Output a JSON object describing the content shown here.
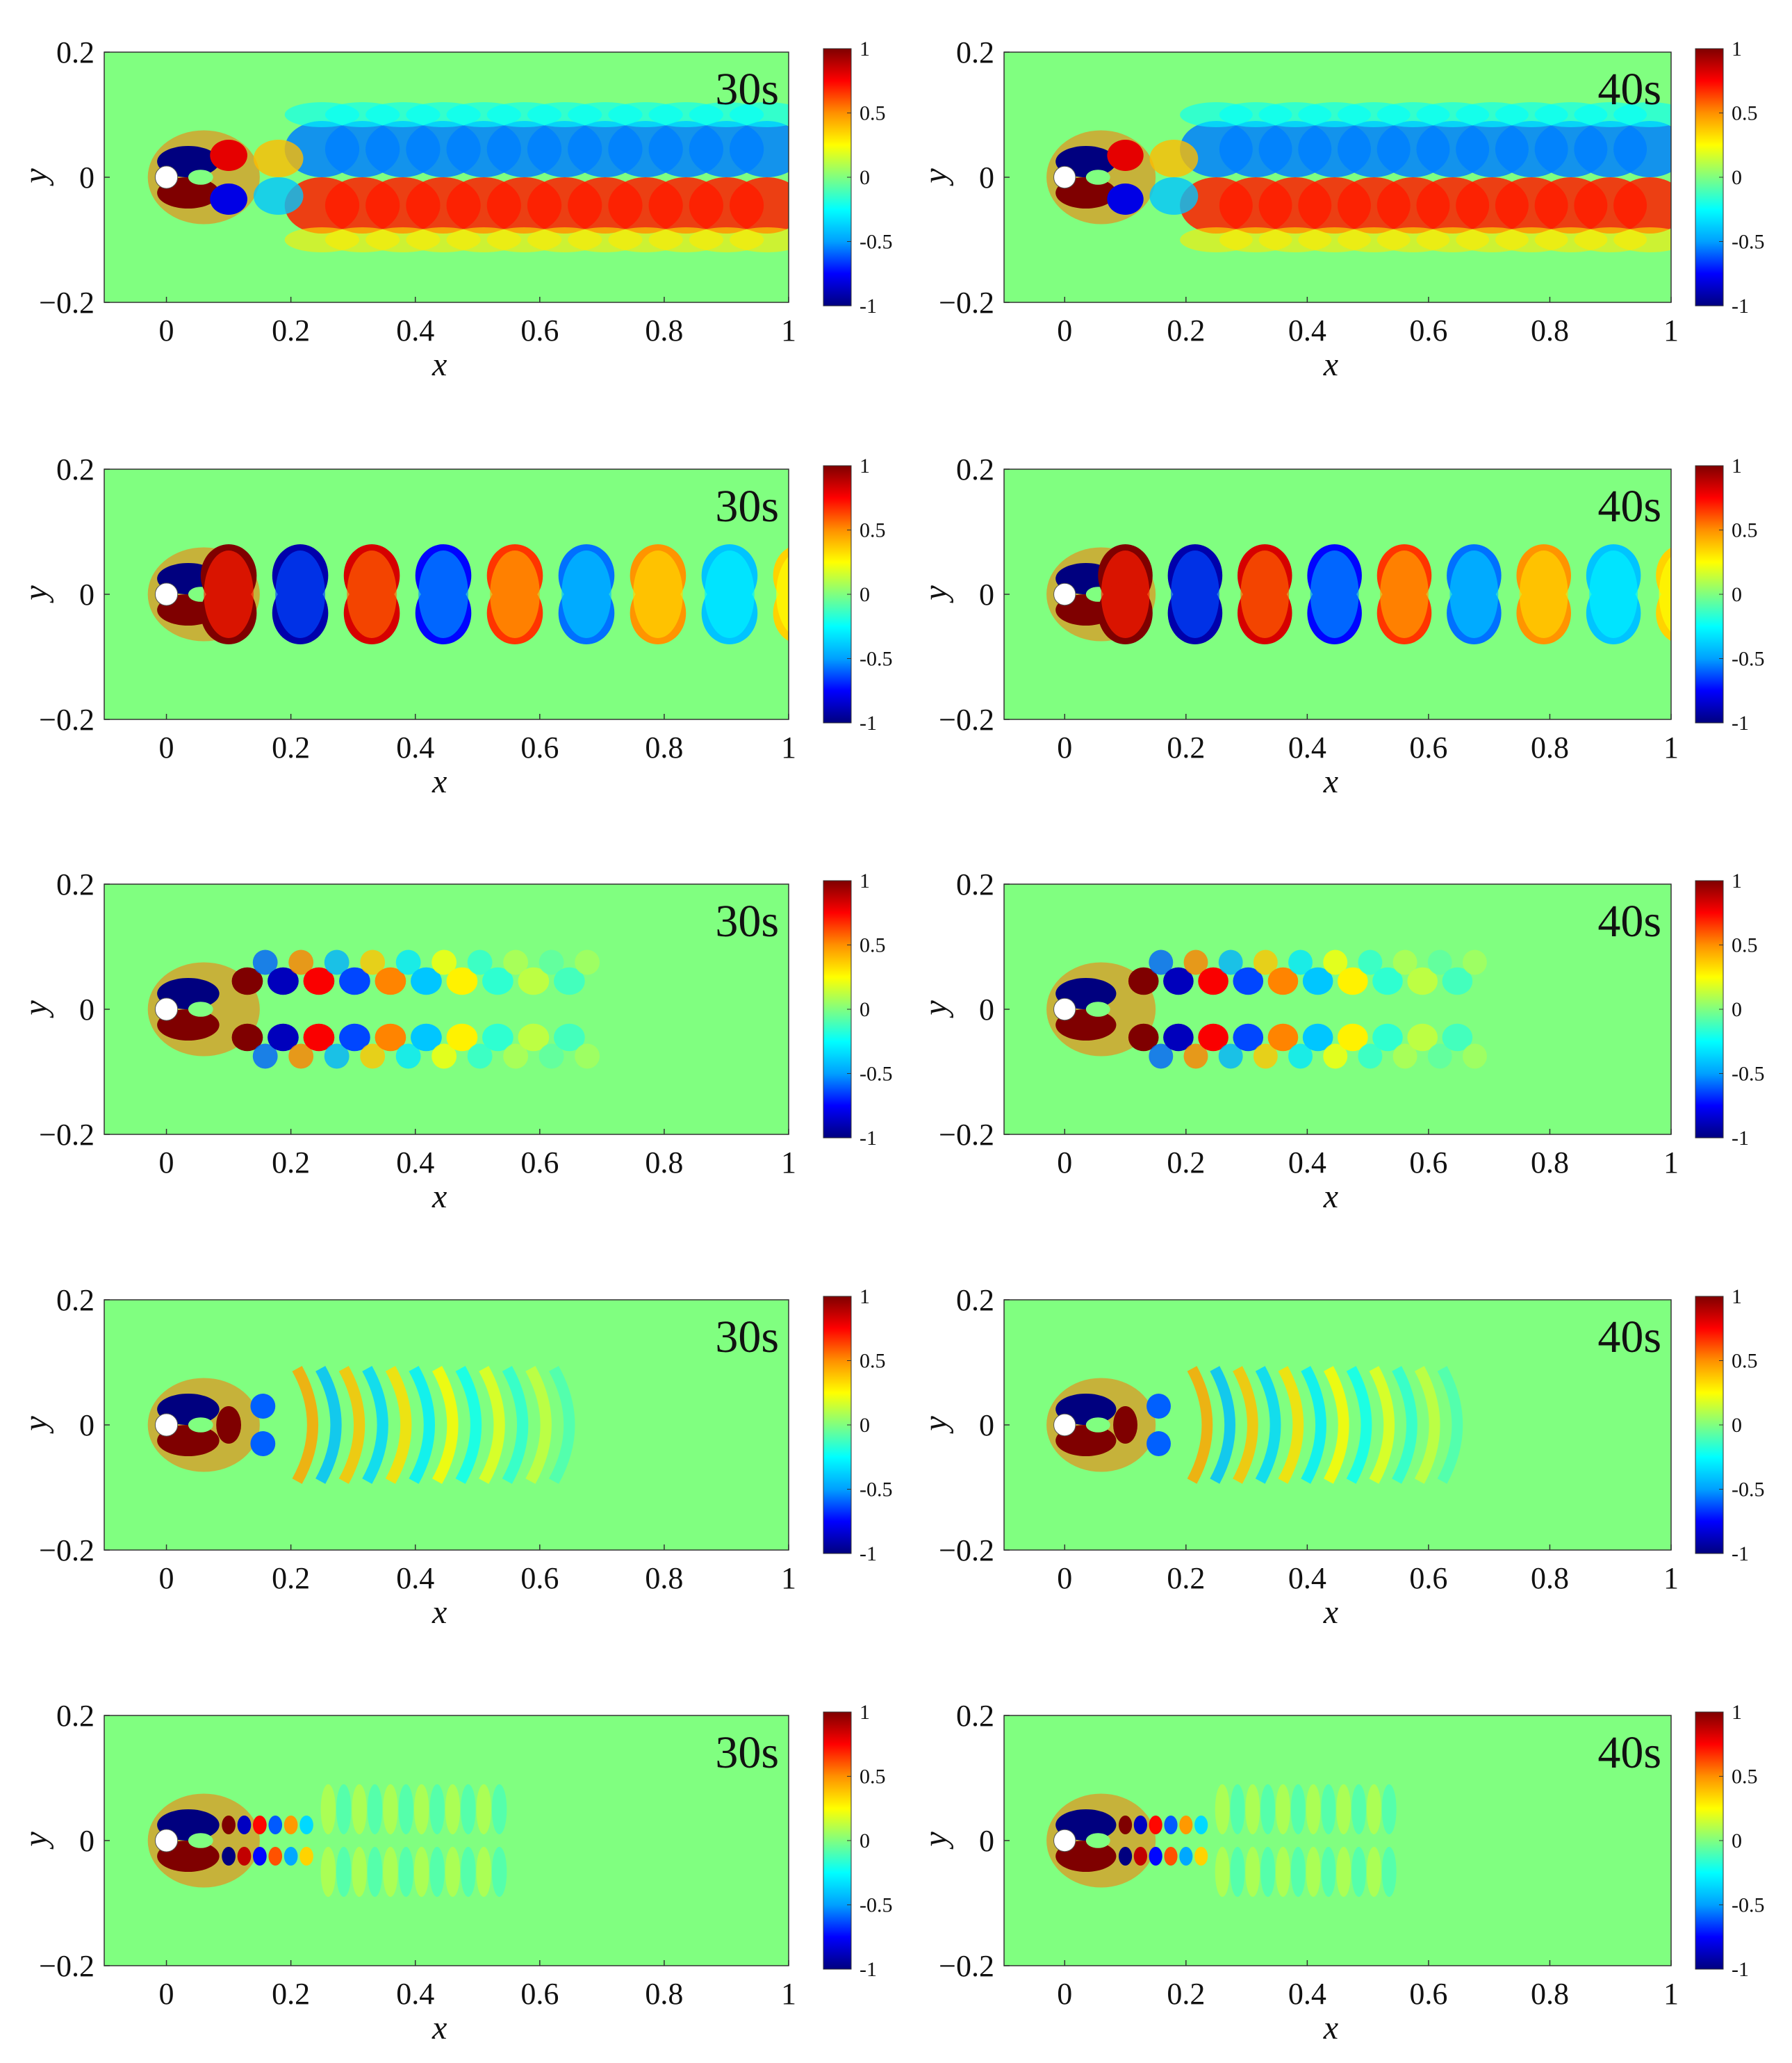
{
  "chart_data": {
    "type": "heatmap",
    "panel_layout": {
      "rows": 5,
      "columns": 2
    },
    "xlabel": "x",
    "ylabel": "y",
    "xlim": [
      -0.1,
      1
    ],
    "ylim": [
      -0.2,
      0.2
    ],
    "xticks": [
      "0",
      "0.2",
      "0.4",
      "0.6",
      "0.8",
      "1"
    ],
    "yticks": [
      "0.2",
      "0",
      "−0.2"
    ],
    "colorbar": {
      "range": [
        -1,
        1
      ],
      "ticks": [
        "1",
        "0.5",
        "0",
        "-0.5",
        "-1"
      ],
      "colormap": "jet"
    },
    "colormap_stops": [
      "#00007f",
      "#0000ff",
      "#00a0ff",
      "#00ffff",
      "#80ff80",
      "#ffff00",
      "#ff9000",
      "#ff0000",
      "#7f0000"
    ],
    "background_value": 0,
    "panels": [
      {
        "row": 1,
        "time_label": "30s",
        "pattern": "shear-layer wake",
        "wavelength": 0
      },
      {
        "row": 1,
        "time_label": "40s",
        "pattern": "shear-layer wake",
        "wavelength": 0
      },
      {
        "row": 2,
        "time_label": "30s",
        "pattern": "vortex street",
        "wavelength": 0.23
      },
      {
        "row": 2,
        "time_label": "40s",
        "pattern": "vortex street",
        "wavelength": 0.23
      },
      {
        "row": 3,
        "time_label": "30s",
        "pattern": "decaying wake",
        "wavelength": 0.115
      },
      {
        "row": 3,
        "time_label": "40s",
        "pattern": "decaying wake",
        "wavelength": 0.115
      },
      {
        "row": 4,
        "time_label": "30s",
        "pattern": "arc waves",
        "wavelength": 0.075
      },
      {
        "row": 4,
        "time_label": "40s",
        "pattern": "arc waves",
        "wavelength": 0.075
      },
      {
        "row": 5,
        "time_label": "30s",
        "pattern": "compact wake",
        "wavelength": 0.05
      },
      {
        "row": 5,
        "time_label": "40s",
        "pattern": "compact wake",
        "wavelength": 0.05
      }
    ]
  }
}
